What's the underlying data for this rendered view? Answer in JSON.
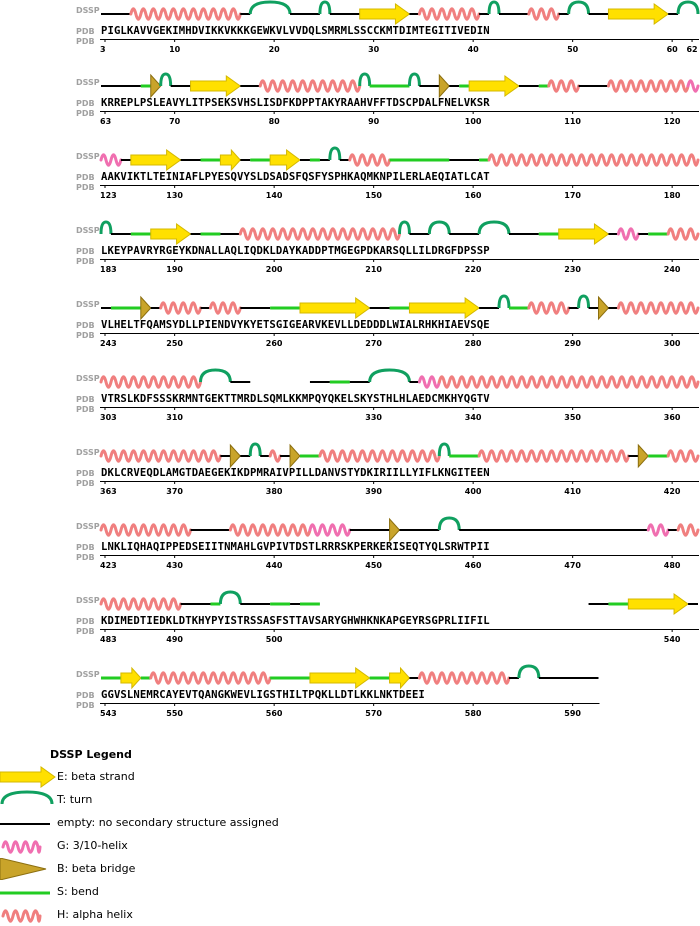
{
  "labels": {
    "dssp": "DSSP",
    "pdb": "PDB"
  },
  "rows": [
    {
      "seq": "PIGLKAVVGEKIMHDVIKKVKKKGEWKVLVVDQLSMRMLSSCCKMTDIMTEGITIVEDIN",
      "start": 3,
      "ticks": [
        {
          "p": 0,
          "label": "3"
        },
        {
          "p": 7,
          "label": "10"
        },
        {
          "p": 17,
          "label": "20"
        },
        {
          "p": 27,
          "label": "30"
        },
        {
          "p": 37,
          "label": "40"
        },
        {
          "p": 47,
          "label": "50"
        },
        {
          "p": 57,
          "label": "60"
        },
        {
          "p": 59,
          "label": "62"
        }
      ],
      "segments": [
        {
          "t": "-",
          "s": 0,
          "e": 3
        },
        {
          "t": "H",
          "s": 3,
          "e": 14
        },
        {
          "t": "-",
          "s": 14,
          "e": 15
        },
        {
          "t": "T",
          "s": 15,
          "e": 19
        },
        {
          "t": "-",
          "s": 19,
          "e": 22
        },
        {
          "t": "T",
          "s": 22,
          "e": 23
        },
        {
          "t": "-",
          "s": 23,
          "e": 26
        },
        {
          "t": "E",
          "s": 26,
          "e": 31
        },
        {
          "t": "-",
          "s": 31,
          "e": 32
        },
        {
          "t": "H",
          "s": 32,
          "e": 38
        },
        {
          "t": "-",
          "s": 38,
          "e": 39
        },
        {
          "t": "T",
          "s": 39,
          "e": 40
        },
        {
          "t": "-",
          "s": 40,
          "e": 43
        },
        {
          "t": "H",
          "s": 43,
          "e": 46
        },
        {
          "t": "-",
          "s": 46,
          "e": 47
        },
        {
          "t": "T",
          "s": 47,
          "e": 49
        },
        {
          "t": "-",
          "s": 49,
          "e": 51
        },
        {
          "t": "E",
          "s": 51,
          "e": 57
        },
        {
          "t": "-",
          "s": 57,
          "e": 58
        },
        {
          "t": "T",
          "s": 58,
          "e": 60
        }
      ]
    },
    {
      "seq": "KRREPLPSLEAVYLITPSEKSVHSLISDFKDPPTAKYRAAHVFFTDSCPDALFNELVKSR",
      "start": 63,
      "ticks": [
        {
          "p": 0,
          "label": "63"
        },
        {
          "p": 7,
          "label": "70"
        },
        {
          "p": 17,
          "label": "80"
        },
        {
          "p": 27,
          "label": "90"
        },
        {
          "p": 37,
          "label": "100"
        },
        {
          "p": 47,
          "label": "110"
        },
        {
          "p": 57,
          "label": "120"
        }
      ],
      "segments": [
        {
          "t": "-",
          "s": 0,
          "e": 4
        },
        {
          "t": "S",
          "s": 4,
          "e": 5
        },
        {
          "t": "B",
          "s": 5,
          "e": 6
        },
        {
          "t": "T",
          "s": 6,
          "e": 7
        },
        {
          "t": "-",
          "s": 7,
          "e": 9
        },
        {
          "t": "E",
          "s": 9,
          "e": 14
        },
        {
          "t": "-",
          "s": 14,
          "e": 16
        },
        {
          "t": "H",
          "s": 16,
          "e": 26
        },
        {
          "t": "T",
          "s": 26,
          "e": 27
        },
        {
          "t": "S",
          "s": 27,
          "e": 31
        },
        {
          "t": "T",
          "s": 31,
          "e": 32
        },
        {
          "t": "-",
          "s": 32,
          "e": 34
        },
        {
          "t": "B",
          "s": 34,
          "e": 35
        },
        {
          "t": "-",
          "s": 35,
          "e": 36
        },
        {
          "t": "S",
          "s": 36,
          "e": 37
        },
        {
          "t": "E",
          "s": 37,
          "e": 42
        },
        {
          "t": "-",
          "s": 42,
          "e": 44
        },
        {
          "t": "S",
          "s": 44,
          "e": 45
        },
        {
          "t": "H",
          "s": 45,
          "e": 48
        },
        {
          "t": "-",
          "s": 48,
          "e": 51
        },
        {
          "t": "H",
          "s": 51,
          "e": 59
        },
        {
          "t": "G",
          "s": 59,
          "e": 60
        }
      ]
    },
    {
      "seq": "AAKVIKTLTEINIAFLPYESQVYSLDSADSFQSFYSPHKAQMKNPILERLAEQIATLCAT",
      "start": 123,
      "ticks": [
        {
          "p": 0,
          "label": "123"
        },
        {
          "p": 7,
          "label": "130"
        },
        {
          "p": 17,
          "label": "140"
        },
        {
          "p": 27,
          "label": "150"
        },
        {
          "p": 37,
          "label": "160"
        },
        {
          "p": 47,
          "label": "170"
        },
        {
          "p": 57,
          "label": "180"
        }
      ],
      "segments": [
        {
          "t": "G",
          "s": 0,
          "e": 2
        },
        {
          "t": "-",
          "s": 2,
          "e": 3
        },
        {
          "t": "E",
          "s": 3,
          "e": 8
        },
        {
          "t": "-",
          "s": 8,
          "e": 10
        },
        {
          "t": "S",
          "s": 10,
          "e": 12
        },
        {
          "t": "E",
          "s": 12,
          "e": 14
        },
        {
          "t": "-",
          "s": 14,
          "e": 15
        },
        {
          "t": "S",
          "s": 15,
          "e": 17
        },
        {
          "t": "E",
          "s": 17,
          "e": 20
        },
        {
          "t": "-",
          "s": 20,
          "e": 21
        },
        {
          "t": "S",
          "s": 21,
          "e": 22
        },
        {
          "t": "-",
          "s": 22,
          "e": 23
        },
        {
          "t": "T",
          "s": 23,
          "e": 24
        },
        {
          "t": "-",
          "s": 24,
          "e": 25
        },
        {
          "t": "H",
          "s": 25,
          "e": 29
        },
        {
          "t": "S",
          "s": 29,
          "e": 35
        },
        {
          "t": "-",
          "s": 35,
          "e": 38
        },
        {
          "t": "S",
          "s": 38,
          "e": 39
        },
        {
          "t": "H",
          "s": 39,
          "e": 60
        }
      ]
    },
    {
      "seq": "LKEYPAVRYRGEYKDNALLAQLIQDKLDAYKADDPTMGEGPDKARSQLLILDRGFDPSSP",
      "start": 183,
      "ticks": [
        {
          "p": 0,
          "label": "183"
        },
        {
          "p": 7,
          "label": "190"
        },
        {
          "p": 17,
          "label": "200"
        },
        {
          "p": 27,
          "label": "210"
        },
        {
          "p": 37,
          "label": "220"
        },
        {
          "p": 47,
          "label": "230"
        },
        {
          "p": 57,
          "label": "240"
        }
      ],
      "segments": [
        {
          "t": "T",
          "s": 0,
          "e": 1
        },
        {
          "t": "-",
          "s": 1,
          "e": 3
        },
        {
          "t": "S",
          "s": 3,
          "e": 5
        },
        {
          "t": "E",
          "s": 5,
          "e": 9
        },
        {
          "t": "-",
          "s": 9,
          "e": 10
        },
        {
          "t": "S",
          "s": 10,
          "e": 12
        },
        {
          "t": "-",
          "s": 12,
          "e": 14
        },
        {
          "t": "H",
          "s": 14,
          "e": 30
        },
        {
          "t": "T",
          "s": 30,
          "e": 31
        },
        {
          "t": "-",
          "s": 31,
          "e": 33
        },
        {
          "t": "T",
          "s": 33,
          "e": 35
        },
        {
          "t": "-",
          "s": 35,
          "e": 38
        },
        {
          "t": "T",
          "s": 38,
          "e": 41
        },
        {
          "t": "-",
          "s": 41,
          "e": 44
        },
        {
          "t": "S",
          "s": 44,
          "e": 46
        },
        {
          "t": "E",
          "s": 46,
          "e": 51
        },
        {
          "t": "-",
          "s": 51,
          "e": 52
        },
        {
          "t": "G",
          "s": 52,
          "e": 54
        },
        {
          "t": "-",
          "s": 54,
          "e": 55
        },
        {
          "t": "S",
          "s": 55,
          "e": 57
        },
        {
          "t": "H",
          "s": 57,
          "e": 60
        }
      ]
    },
    {
      "seq": "VLHELTFQAMSYDLLPIENDVYKYETSGIGEARVKEVLLDEDDDLWIALRHKHIAEVSQE",
      "start": 243,
      "ticks": [
        {
          "p": 0,
          "label": "243"
        },
        {
          "p": 7,
          "label": "250"
        },
        {
          "p": 17,
          "label": "260"
        },
        {
          "p": 27,
          "label": "270"
        },
        {
          "p": 37,
          "label": "280"
        },
        {
          "p": 47,
          "label": "290"
        },
        {
          "p": 57,
          "label": "300"
        }
      ],
      "segments": [
        {
          "t": "-",
          "s": 0,
          "e": 1
        },
        {
          "t": "S",
          "s": 1,
          "e": 4
        },
        {
          "t": "B",
          "s": 4,
          "e": 5
        },
        {
          "t": "-",
          "s": 5,
          "e": 6
        },
        {
          "t": "H",
          "s": 6,
          "e": 10
        },
        {
          "t": "-",
          "s": 10,
          "e": 11
        },
        {
          "t": "H",
          "s": 11,
          "e": 14
        },
        {
          "t": "-",
          "s": 14,
          "e": 17
        },
        {
          "t": "S",
          "s": 17,
          "e": 20
        },
        {
          "t": "E",
          "s": 20,
          "e": 27
        },
        {
          "t": "-",
          "s": 27,
          "e": 29
        },
        {
          "t": "S",
          "s": 29,
          "e": 31
        },
        {
          "t": "E",
          "s": 31,
          "e": 38
        },
        {
          "t": "-",
          "s": 38,
          "e": 40
        },
        {
          "t": "T",
          "s": 40,
          "e": 41
        },
        {
          "t": "S",
          "s": 41,
          "e": 43
        },
        {
          "t": "H",
          "s": 43,
          "e": 47
        },
        {
          "t": "-",
          "s": 47,
          "e": 48
        },
        {
          "t": "T",
          "s": 48,
          "e": 49
        },
        {
          "t": "-",
          "s": 49,
          "e": 50
        },
        {
          "t": "B",
          "s": 50,
          "e": 51
        },
        {
          "t": "-",
          "s": 51,
          "e": 52
        },
        {
          "t": "H",
          "s": 52,
          "e": 60
        }
      ]
    },
    {
      "seq": "VTRSLKDFSSSKRMNTGEKTTMRDLSQMLKKMPQYQKELSKYSTHLHLAEDCMKHYQGTV",
      "start": 303,
      "ticks": [
        {
          "p": 0,
          "label": "303"
        },
        {
          "p": 7,
          "label": "310"
        },
        {
          "p": 27,
          "label": "330"
        },
        {
          "p": 37,
          "label": "340"
        },
        {
          "p": 47,
          "label": "350"
        },
        {
          "p": 57,
          "label": "360"
        }
      ],
      "segments": [
        {
          "t": "H",
          "s": 0,
          "e": 10
        },
        {
          "t": "T",
          "s": 10,
          "e": 13
        },
        {
          "t": "-",
          "s": 13,
          "e": 15
        },
        {
          "t": "-",
          "s": 21,
          "e": 23
        },
        {
          "t": "S",
          "s": 23,
          "e": 25
        },
        {
          "t": "-",
          "s": 25,
          "e": 27
        },
        {
          "t": "T",
          "s": 27,
          "e": 31
        },
        {
          "t": "-",
          "s": 31,
          "e": 32
        },
        {
          "t": "G",
          "s": 32,
          "e": 34
        },
        {
          "t": "H",
          "s": 34,
          "e": 60
        }
      ]
    },
    {
      "seq": "DKLCRVEQDLAMGTDAEGEKIKDPMRAIVPILLDANVSTYDKIRIILLYIFLKNGITEEN",
      "start": 363,
      "ticks": [
        {
          "p": 0,
          "label": "363"
        },
        {
          "p": 7,
          "label": "370"
        },
        {
          "p": 17,
          "label": "380"
        },
        {
          "p": 27,
          "label": "390"
        },
        {
          "p": 37,
          "label": "400"
        },
        {
          "p": 47,
          "label": "410"
        },
        {
          "p": 57,
          "label": "420"
        }
      ],
      "segments": [
        {
          "t": "H",
          "s": 0,
          "e": 12
        },
        {
          "t": "-",
          "s": 12,
          "e": 13
        },
        {
          "t": "B",
          "s": 13,
          "e": 14
        },
        {
          "t": "-",
          "s": 14,
          "e": 15
        },
        {
          "t": "T",
          "s": 15,
          "e": 16
        },
        {
          "t": "-",
          "s": 16,
          "e": 17
        },
        {
          "t": "H",
          "s": 17,
          "e": 18
        },
        {
          "t": "-",
          "s": 18,
          "e": 19
        },
        {
          "t": "B",
          "s": 19,
          "e": 20
        },
        {
          "t": "S",
          "s": 20,
          "e": 22
        },
        {
          "t": "H",
          "s": 22,
          "e": 34
        },
        {
          "t": "T",
          "s": 34,
          "e": 35
        },
        {
          "t": "S",
          "s": 35,
          "e": 38
        },
        {
          "t": "H",
          "s": 38,
          "e": 53
        },
        {
          "t": "-",
          "s": 53,
          "e": 54
        },
        {
          "t": "B",
          "s": 54,
          "e": 55
        },
        {
          "t": "S",
          "s": 55,
          "e": 57
        },
        {
          "t": "H",
          "s": 57,
          "e": 60
        }
      ]
    },
    {
      "seq": "LNKLIQHAQIPPEDSEIITNMAHLGVPIVTDSTLRRRSKPERKERISEQTYQLSRWTPII",
      "start": 423,
      "ticks": [
        {
          "p": 0,
          "label": "423"
        },
        {
          "p": 7,
          "label": "430"
        },
        {
          "p": 17,
          "label": "440"
        },
        {
          "p": 27,
          "label": "450"
        },
        {
          "p": 37,
          "label": "460"
        },
        {
          "p": 47,
          "label": "470"
        },
        {
          "p": 57,
          "label": "480"
        }
      ],
      "segments": [
        {
          "t": "H",
          "s": 0,
          "e": 9
        },
        {
          "t": "-",
          "s": 9,
          "e": 13
        },
        {
          "t": "H",
          "s": 13,
          "e": 21
        },
        {
          "t": "G",
          "s": 21,
          "e": 25
        },
        {
          "t": "-",
          "s": 25,
          "e": 29
        },
        {
          "t": "B",
          "s": 29,
          "e": 30
        },
        {
          "t": "-",
          "s": 30,
          "e": 34
        },
        {
          "t": "T",
          "s": 34,
          "e": 36
        },
        {
          "t": "-",
          "s": 36,
          "e": 55
        },
        {
          "t": "G",
          "s": 55,
          "e": 57
        },
        {
          "t": "-",
          "s": 57,
          "e": 58
        },
        {
          "t": "H",
          "s": 58,
          "e": 60
        }
      ]
    },
    {
      "seq": "KDIMEDTIEDKLDTKHYPYISTRSSASFSTTAVSARYGHWHKNKAPGEYRSGPRLIIFIL",
      "start": 483,
      "ticks": [
        {
          "p": 0,
          "label": "483"
        },
        {
          "p": 7,
          "label": "490"
        },
        {
          "p": 17,
          "label": "500"
        },
        {
          "p": 57,
          "label": "540"
        }
      ],
      "segments": [
        {
          "t": "H",
          "s": 0,
          "e": 8
        },
        {
          "t": "-",
          "s": 8,
          "e": 11
        },
        {
          "t": "S",
          "s": 11,
          "e": 12
        },
        {
          "t": "T",
          "s": 12,
          "e": 14
        },
        {
          "t": "-",
          "s": 14,
          "e": 17
        },
        {
          "t": "S",
          "s": 17,
          "e": 19
        },
        {
          "t": "-",
          "s": 19,
          "e": 20
        },
        {
          "t": "S",
          "s": 20,
          "e": 22
        },
        {
          "t": "-",
          "s": 49,
          "e": 51
        },
        {
          "t": "S",
          "s": 51,
          "e": 53
        },
        {
          "t": "E",
          "s": 53,
          "e": 59
        },
        {
          "t": "-",
          "s": 59,
          "e": 60
        }
      ]
    },
    {
      "seq": "GGVSLNEMRCAYEVTQANGKWEVLIGSTHILTPQKLLDTLKKLNKTDEEI",
      "start": 543,
      "ticks": [
        {
          "p": 0,
          "label": "543"
        },
        {
          "p": 7,
          "label": "550"
        },
        {
          "p": 17,
          "label": "560"
        },
        {
          "p": 27,
          "label": "570"
        },
        {
          "p": 37,
          "label": "580"
        },
        {
          "p": 47,
          "label": "590"
        }
      ],
      "segments": [
        {
          "t": "S",
          "s": 0,
          "e": 2
        },
        {
          "t": "E",
          "s": 2,
          "e": 4
        },
        {
          "t": "S",
          "s": 4,
          "e": 5
        },
        {
          "t": "H",
          "s": 5,
          "e": 17
        },
        {
          "t": "S",
          "s": 17,
          "e": 21
        },
        {
          "t": "E",
          "s": 21,
          "e": 27
        },
        {
          "t": "S",
          "s": 27,
          "e": 29
        },
        {
          "t": "E",
          "s": 29,
          "e": 31
        },
        {
          "t": "-",
          "s": 31,
          "e": 32
        },
        {
          "t": "H",
          "s": 32,
          "e": 41
        },
        {
          "t": "-",
          "s": 41,
          "e": 42
        },
        {
          "t": "T",
          "s": 42,
          "e": 44
        },
        {
          "t": "-",
          "s": 44,
          "e": 50
        }
      ]
    }
  ],
  "legend": {
    "title": "DSSP Legend",
    "items": [
      {
        "type": "E",
        "text": "E: beta strand"
      },
      {
        "type": "T",
        "text": "T: turn"
      },
      {
        "type": "-",
        "text": "empty: no secondary structure assigned"
      },
      {
        "type": "G",
        "text": "G: 3/10-helix"
      },
      {
        "type": "B",
        "text": "B: beta bridge"
      },
      {
        "type": "S",
        "text": "S: bend"
      },
      {
        "type": "H",
        "text": "H: alpha helix"
      }
    ]
  },
  "colors": {
    "helix": "#f07f7f",
    "helix310": "#f06fb0",
    "strand_fill": "#ffe000",
    "strand_stroke": "#d4b800",
    "bridge_fill": "#c9a42a",
    "bridge_stroke": "#8c6f10",
    "turn": "#10a060",
    "bend": "#22cc22",
    "coil": "#000000"
  }
}
